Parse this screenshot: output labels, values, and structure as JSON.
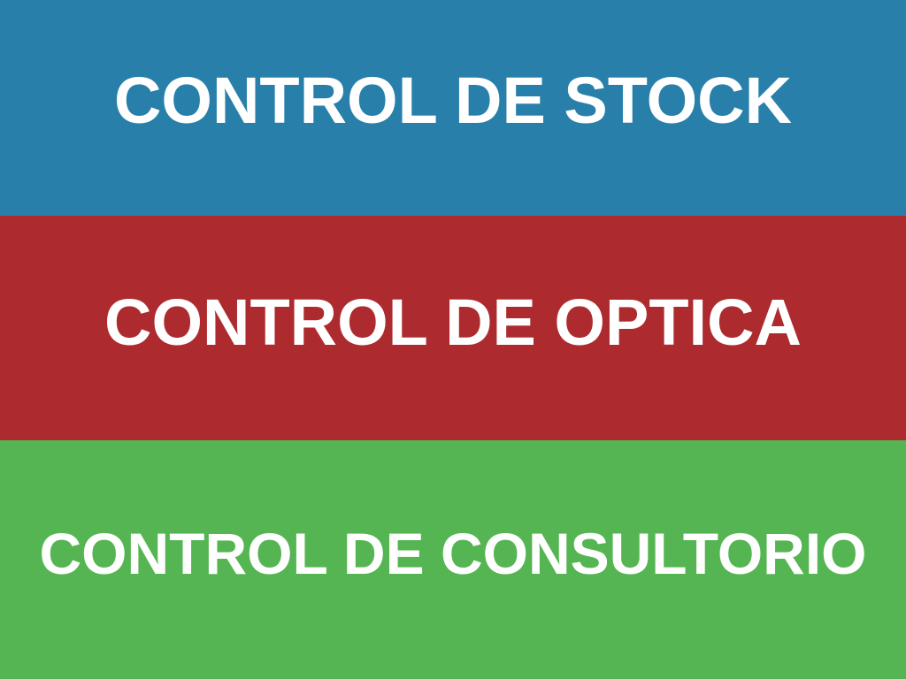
{
  "menu": {
    "items": [
      {
        "label": "CONTROL DE STOCK",
        "color": "#2880aa"
      },
      {
        "label": "CONTROL DE OPTICA",
        "color": "#ad2b2e"
      },
      {
        "label": "CONTROL DE CONSULTORIO",
        "color": "#55b552"
      }
    ],
    "text_color": "#ffffff"
  }
}
